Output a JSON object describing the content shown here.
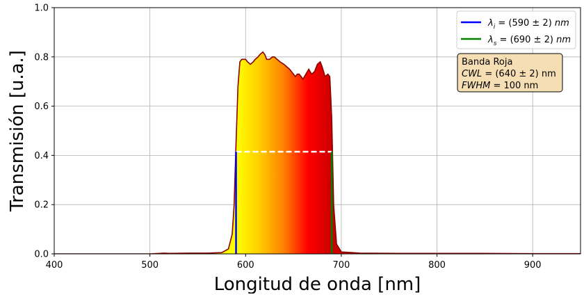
{
  "chart_data": {
    "type": "area",
    "title": "",
    "xlabel": "Longitud de onda [nm]",
    "ylabel": "Transmisión [u.a.]",
    "xlim": [
      400,
      950
    ],
    "ylim": [
      0,
      1.0
    ],
    "xticks": [
      400,
      500,
      600,
      700,
      800,
      900
    ],
    "yticks": [
      0.0,
      0.2,
      0.4,
      0.6,
      0.8,
      1.0
    ],
    "xtick_labels": [
      "400",
      "500",
      "600",
      "700",
      "800",
      "900"
    ],
    "ytick_labels": [
      "0.0",
      "0.2",
      "0.4",
      "0.6",
      "0.8",
      "1.0"
    ],
    "grid": true,
    "legend_position": "top-right",
    "series": [
      {
        "color": "#8b0000",
        "fill_gradient": [
          "#ffff00",
          "#ffcc00",
          "#ff8000",
          "#ff0000",
          "#cc0000"
        ],
        "x": [
          400,
          500,
          510,
          515,
          520,
          540,
          560,
          575,
          582,
          586,
          588,
          590,
          592,
          594,
          596,
          598,
          600,
          602,
          605,
          608,
          610,
          613,
          615,
          618,
          620,
          622,
          625,
          628,
          630,
          633,
          636,
          640,
          643,
          646,
          650,
          652,
          654,
          656,
          658,
          660,
          663,
          666,
          669,
          672,
          675,
          678,
          680,
          683,
          686,
          688,
          690,
          692,
          695,
          700,
          720,
          760,
          800,
          850,
          900,
          950
        ],
        "y": [
          0.0,
          0.0,
          0.002,
          0.003,
          0.002,
          0.003,
          0.003,
          0.005,
          0.02,
          0.08,
          0.2,
          0.45,
          0.68,
          0.78,
          0.79,
          0.79,
          0.79,
          0.78,
          0.77,
          0.78,
          0.79,
          0.8,
          0.81,
          0.82,
          0.81,
          0.79,
          0.79,
          0.8,
          0.8,
          0.79,
          0.78,
          0.77,
          0.76,
          0.75,
          0.73,
          0.72,
          0.73,
          0.73,
          0.72,
          0.71,
          0.73,
          0.75,
          0.73,
          0.74,
          0.77,
          0.78,
          0.76,
          0.72,
          0.73,
          0.72,
          0.55,
          0.2,
          0.04,
          0.008,
          0.003,
          0.002,
          0.002,
          0.002,
          0.001,
          0.001
        ]
      }
    ],
    "markers": {
      "lambda_i": {
        "x": 590,
        "y": 0.415,
        "color": "#0000ff"
      },
      "lambda_s": {
        "x": 690,
        "y": 0.415,
        "color": "#008000"
      },
      "half_max_line": {
        "x": [
          590,
          690
        ],
        "y": 0.415,
        "color": "#ffffff",
        "style": "dashed"
      }
    },
    "legend": [
      {
        "pre": "λ",
        "sub": "i",
        "post": " = (590 ± 2) ",
        "unit": "nm",
        "color": "#0000ff"
      },
      {
        "pre": "λ",
        "sub": "s",
        "post": " = (690 ± 2) ",
        "unit": "nm",
        "color": "#008000"
      }
    ],
    "annotation": {
      "lines": [
        {
          "italic": "",
          "rest": "Banda Roja"
        },
        {
          "italic": "CWL",
          "rest": " = (640 ± 2) nm"
        },
        {
          "italic": "FWHM",
          "rest": " = 100 nm"
        }
      ],
      "background": "#f5deb3"
    }
  }
}
